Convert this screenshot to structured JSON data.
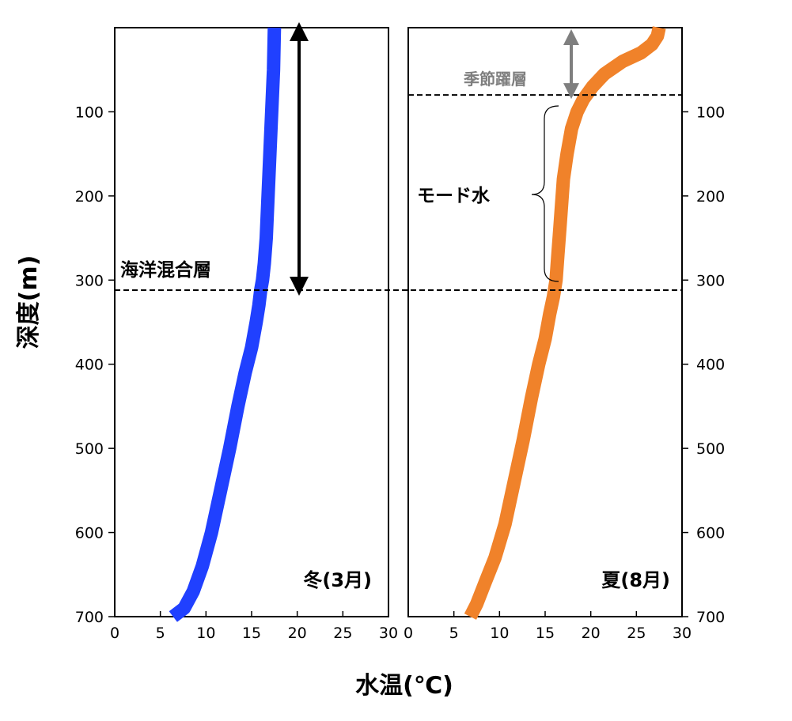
{
  "colors": {
    "winter": "#2040ff",
    "summer": "#f0822a",
    "arrow_black": "#000000",
    "arrow_gray": "#7f7f7f"
  },
  "y_axis_title": "深度(m)",
  "x_axis_title": "水温(℃)",
  "annotations": {
    "mixed_layer": "海洋混合層",
    "thermocline": "季節躍層",
    "mode_water": "モード水"
  },
  "chart_data": [
    {
      "type": "line",
      "panel_label": "冬(3月)",
      "xlabel": "水温(℃)",
      "ylabel": "深度(m)",
      "xlim": [
        0,
        30
      ],
      "ylim": [
        700,
        0
      ],
      "xticks": [
        "0",
        "5",
        "10",
        "15",
        "20",
        "25",
        "30"
      ],
      "yticks": [
        "100",
        "200",
        "300",
        "400",
        "500",
        "600",
        "700"
      ],
      "grid": false,
      "y_axis_side": "left",
      "reference_depths": [
        312
      ],
      "series": [
        {
          "color": "#2040ff",
          "x": [
            17.5,
            17.4,
            17.2,
            17.0,
            16.8,
            16.6,
            16.4,
            16.2,
            16.0,
            15.8,
            15.5,
            15.0,
            14.3,
            13.5,
            12.6,
            11.6,
            10.6,
            9.6,
            8.6,
            7.6,
            6.4
          ],
          "y": [
            0,
            50,
            100,
            150,
            200,
            250,
            280,
            300,
            312,
            330,
            350,
            380,
            410,
            450,
            500,
            550,
            600,
            640,
            670,
            690,
            700
          ]
        }
      ]
    },
    {
      "type": "line",
      "panel_label": "夏(8月)",
      "xlabel": "水温(℃)",
      "ylabel": "深度(m)",
      "xlim": [
        0,
        30
      ],
      "ylim": [
        700,
        0
      ],
      "xticks": [
        "0",
        "5",
        "10",
        "15",
        "20",
        "25",
        "30"
      ],
      "yticks": [
        "100",
        "200",
        "300",
        "400",
        "500",
        "600",
        "700"
      ],
      "grid": false,
      "y_axis_side": "right",
      "reference_depths": [
        80,
        312
      ],
      "series": [
        {
          "color": "#f0822a",
          "x": [
            27.5,
            27.3,
            26.7,
            25.5,
            23.5,
            21.5,
            20.2,
            19.2,
            18.5,
            17.9,
            17.4,
            17.0,
            16.8,
            16.6,
            16.4,
            16.2,
            15.9,
            15.5,
            15.0,
            14.3,
            13.5,
            12.6,
            11.6,
            10.6,
            9.5,
            8.4,
            7.5,
            6.8
          ],
          "y": [
            0,
            10,
            20,
            30,
            40,
            55,
            70,
            85,
            100,
            120,
            150,
            180,
            210,
            240,
            270,
            300,
            320,
            340,
            370,
            400,
            440,
            490,
            540,
            590,
            630,
            660,
            685,
            700
          ]
        }
      ]
    }
  ]
}
